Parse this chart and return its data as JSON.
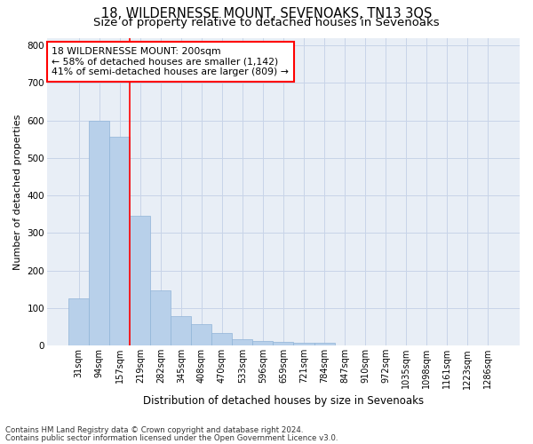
{
  "title": "18, WILDERNESSE MOUNT, SEVENOAKS, TN13 3QS",
  "subtitle": "Size of property relative to detached houses in Sevenoaks",
  "xlabel": "Distribution of detached houses by size in Sevenoaks",
  "ylabel": "Number of detached properties",
  "bar_labels": [
    "31sqm",
    "94sqm",
    "157sqm",
    "219sqm",
    "282sqm",
    "345sqm",
    "408sqm",
    "470sqm",
    "533sqm",
    "596sqm",
    "659sqm",
    "721sqm",
    "784sqm",
    "847sqm",
    "910sqm",
    "972sqm",
    "1035sqm",
    "1098sqm",
    "1161sqm",
    "1223sqm",
    "1286sqm"
  ],
  "bar_heights": [
    125,
    600,
    557,
    347,
    148,
    78,
    57,
    33,
    17,
    12,
    10,
    7,
    8,
    0,
    0,
    0,
    0,
    0,
    0,
    0,
    0
  ],
  "bar_color": "#b8d0ea",
  "bar_edge_color": "#90b4d8",
  "red_line_x": 2.5,
  "annotation_text": "18 WILDERNESSE MOUNT: 200sqm\n← 58% of detached houses are smaller (1,142)\n41% of semi-detached houses are larger (809) →",
  "annotation_box_color": "white",
  "annotation_box_edge_color": "red",
  "footnote1": "Contains HM Land Registry data © Crown copyright and database right 2024.",
  "footnote2": "Contains public sector information licensed under the Open Government Licence v3.0.",
  "ylim": [
    0,
    820
  ],
  "yticks": [
    0,
    100,
    200,
    300,
    400,
    500,
    600,
    700,
    800
  ],
  "grid_color": "#c8d4e8",
  "background_color": "#e8eef6",
  "title_fontsize": 10.5,
  "subtitle_fontsize": 9.5,
  "annotation_fontsize": 7.8,
  "ylabel_fontsize": 8,
  "xlabel_fontsize": 8.5,
  "tick_fontsize": 7,
  "footnote_fontsize": 6.2
}
